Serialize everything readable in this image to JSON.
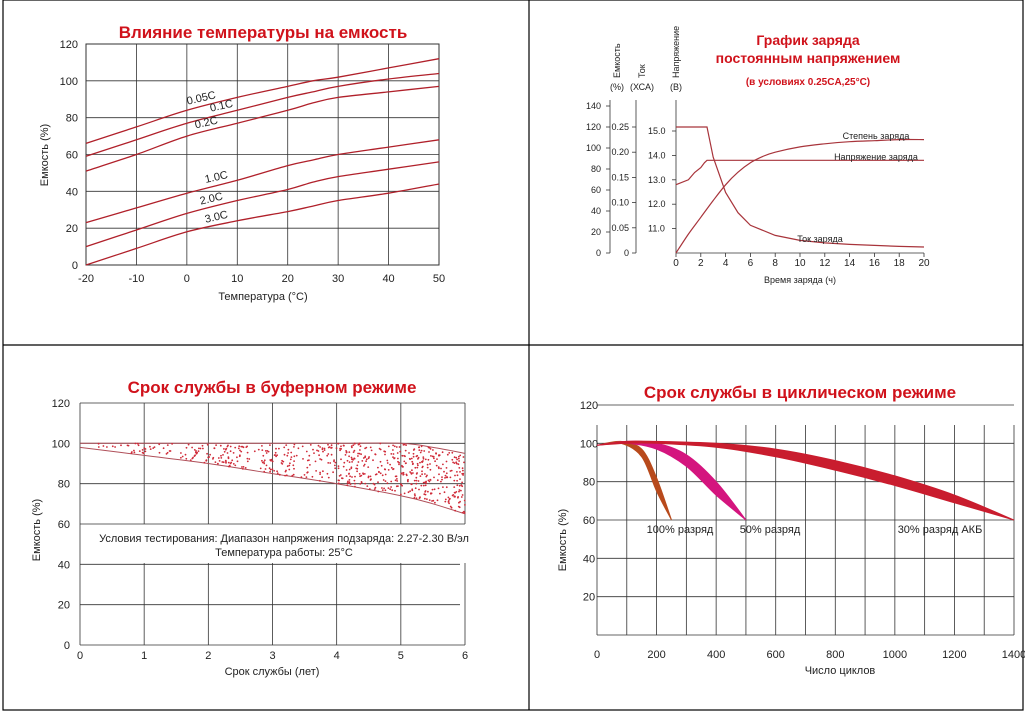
{
  "chart_data": [
    {
      "type": "line",
      "title": "Влияние температуры на емкость",
      "xlabel": "Температура (°C)",
      "ylabel": "Емкость (%)",
      "xlim": [
        -20,
        50
      ],
      "ylim": [
        0,
        120
      ],
      "x_ticks": [
        "-20",
        "-10",
        "0",
        "10",
        "20",
        "30",
        "40",
        "50"
      ],
      "y_ticks": [
        "0",
        "20",
        "40",
        "60",
        "80",
        "100",
        "120"
      ],
      "grid": true,
      "x": [
        -20,
        -10,
        0,
        10,
        20,
        25,
        30,
        40,
        50
      ],
      "series": [
        {
          "name": "0.05C",
          "values": [
            66,
            75,
            84,
            91,
            97,
            100,
            102,
            107,
            112
          ]
        },
        {
          "name": "0.1C",
          "values": [
            59,
            68,
            77,
            84,
            91,
            94,
            97,
            101,
            104
          ]
        },
        {
          "name": "0.2C",
          "values": [
            51,
            60,
            70,
            77,
            84,
            88,
            91,
            94,
            97
          ]
        },
        {
          "name": "1.0C",
          "values": [
            23,
            31,
            39,
            46,
            54,
            57,
            60,
            64,
            68
          ]
        },
        {
          "name": "2.0C",
          "values": [
            10,
            19,
            28,
            35,
            41,
            45,
            48,
            52,
            56
          ]
        },
        {
          "name": "3.0C",
          "values": [
            0,
            9,
            18,
            24,
            29,
            32,
            35,
            39,
            44
          ]
        }
      ]
    },
    {
      "type": "line",
      "title": "График заряда",
      "title2": "постоянным напряжением",
      "subtitle": "(в условиях 0.25CA,25°C)",
      "xlabel": "Время заряда (ч)",
      "xlim": [
        0,
        20
      ],
      "x_ticks": [
        "0",
        "2",
        "4",
        "6",
        "8",
        "10",
        "12",
        "14",
        "16",
        "18",
        "20"
      ],
      "axis_headers": [
        {
          "name": "Емкость",
          "unit": "(%)"
        },
        {
          "name": "Ток",
          "unit": "(ХСА)"
        },
        {
          "name": "Напряжение",
          "unit": "(В)"
        }
      ],
      "capacity_axis": {
        "range": [
          0,
          140
        ],
        "ticks": [
          "0",
          "20",
          "40",
          "60",
          "80",
          "100",
          "120",
          "140"
        ]
      },
      "current_axis": {
        "range": [
          0,
          0.25
        ],
        "ticks": [
          "0",
          "0.05",
          "0.10",
          "0.15",
          "0.20",
          "0.25"
        ]
      },
      "voltage_axis": {
        "range": [
          10.0,
          15.0
        ],
        "ticks": [
          "11.0",
          "12.0",
          "13.0",
          "14.0",
          "15.0"
        ]
      },
      "series": [
        {
          "name": "Степень заряда",
          "axis": "capacity",
          "x": [
            0,
            1,
            2,
            3,
            4,
            5,
            6,
            7,
            8,
            10,
            12,
            14,
            16,
            18,
            20
          ],
          "values": [
            0,
            18,
            34,
            50,
            65,
            77,
            86,
            92,
            96,
            101,
            104,
            106,
            107,
            108,
            108
          ]
        },
        {
          "name": "Напряжение заряда",
          "axis": "voltage",
          "x": [
            0,
            1,
            1.5,
            2,
            2.3,
            2.5,
            3,
            4,
            6,
            10,
            20
          ],
          "values": [
            12.8,
            13.0,
            13.3,
            13.5,
            13.7,
            13.8,
            13.8,
            13.8,
            13.8,
            13.8,
            13.8
          ]
        },
        {
          "name": "Ток заряда",
          "axis": "current",
          "x": [
            0,
            1,
            2,
            2.5,
            3,
            4,
            5,
            6,
            8,
            10,
            12,
            14,
            16,
            18,
            20
          ],
          "values": [
            0.25,
            0.25,
            0.25,
            0.25,
            0.19,
            0.12,
            0.08,
            0.055,
            0.035,
            0.025,
            0.02,
            0.017,
            0.015,
            0.013,
            0.012
          ]
        }
      ]
    },
    {
      "type": "area",
      "title": "Срок службы в буферном режиме",
      "xlabel": "Срок службы (лет)",
      "ylabel": "Емкость (%)",
      "xlim": [
        0,
        6
      ],
      "ylim": [
        0,
        120
      ],
      "x_ticks": [
        "0",
        "1",
        "2",
        "3",
        "4",
        "5",
        "6"
      ],
      "y_ticks": [
        "0",
        "20",
        "40",
        "60",
        "80",
        "100",
        "120"
      ],
      "grid": true,
      "band": {
        "x": [
          0,
          1,
          2,
          3,
          4,
          5,
          5.5,
          6
        ],
        "upper": [
          100,
          100,
          100,
          100,
          100,
          100,
          98,
          95
        ],
        "lower": [
          98,
          94,
          90,
          85,
          80,
          74,
          70,
          65
        ]
      },
      "annotations": [
        "Условия тестирования: Диапазон напряжения подзаряда: 2.27-2.30 В/эл",
        "Температура работы: 25°C"
      ]
    },
    {
      "type": "area",
      "title": "Срок службы в циклическом режиме",
      "xlabel": "Число циклов",
      "ylabel": "Емкость (%)",
      "xlim": [
        0,
        1400
      ],
      "ylim": [
        0,
        120
      ],
      "x_ticks": [
        "0",
        "200",
        "400",
        "600",
        "800",
        "1000",
        "1200",
        "1400"
      ],
      "y_ticks": [
        "20",
        "40",
        "60",
        "80",
        "100",
        "120"
      ],
      "grid": true,
      "series": [
        {
          "name": "100% разряд",
          "color": "#b84a1c",
          "x": [
            0,
            80,
            150,
            200,
            250
          ],
          "upper": [
            99,
            101,
            97,
            82,
            60
          ],
          "lower": [
            99,
            100,
            93,
            75,
            60
          ]
        },
        {
          "name": "50% разряд",
          "color": "#d4157e",
          "x": [
            0,
            100,
            200,
            300,
            400,
            500
          ],
          "upper": [
            99,
            101,
            100,
            94,
            80,
            60
          ],
          "lower": [
            99,
            100,
            97,
            88,
            73,
            60
          ]
        },
        {
          "name": "30% разряд АКБ",
          "color": "#c91d2e",
          "x": [
            0,
            100,
            200,
            400,
            600,
            800,
            1000,
            1200,
            1400
          ],
          "upper": [
            99,
            101,
            101,
            100,
            97,
            91,
            83,
            73,
            60
          ],
          "lower": [
            99,
            100,
            100,
            98,
            93,
            86,
            78,
            69,
            60
          ]
        }
      ]
    }
  ]
}
